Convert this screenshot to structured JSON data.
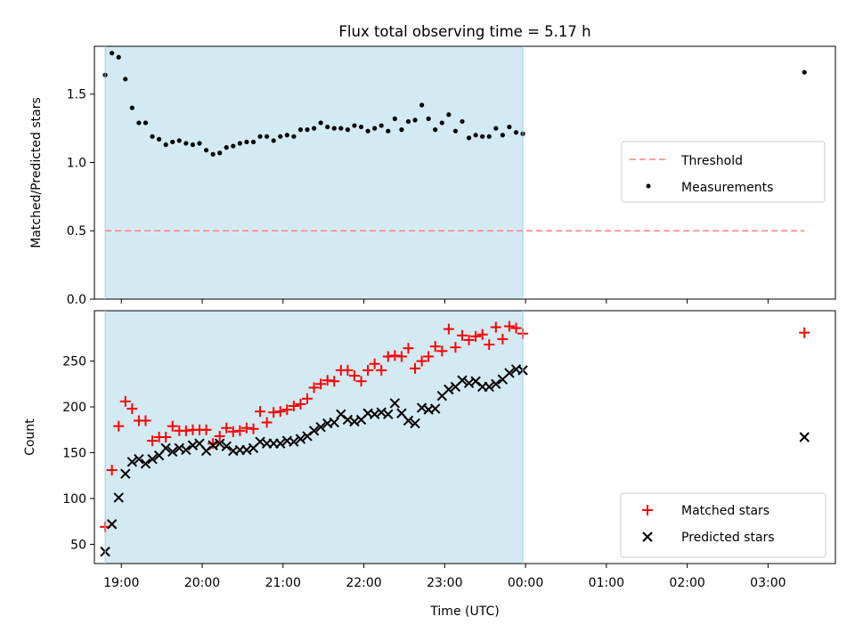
{
  "title": "Flux total observing time = 5.17 h",
  "xlabel": "Time (UTC)",
  "x_ticks": [
    "19:00",
    "20:00",
    "21:00",
    "22:00",
    "23:00",
    "00:00",
    "01:00",
    "02:00",
    "03:00"
  ],
  "colors": {
    "shade": "#add8e6",
    "threshold": "#ff8080",
    "measurements": "#000000",
    "matched": "#ff0000",
    "predicted": "#000000"
  },
  "chart_data": [
    {
      "type": "scatter",
      "ylabel": "Matched/Predicted stars",
      "ylim": [
        0,
        1.85
      ],
      "y_ticks": [
        "0.0",
        "0.5",
        "1.0",
        "1.5"
      ],
      "y_tick_values": [
        0,
        0.5,
        1.0,
        1.5
      ],
      "shaded_span": [
        "18:48",
        "23:58"
      ],
      "legend": {
        "placement": "center-right",
        "entries": [
          "Threshold",
          "Measurements"
        ]
      },
      "threshold": {
        "name": "Threshold",
        "value": 0.5,
        "x_range": [
          "18:48",
          "03:27"
        ]
      },
      "series": [
        {
          "name": "Measurements",
          "x": [
            "18:48",
            "18:53",
            "18:58",
            "19:03",
            "19:08",
            "19:13",
            "19:18",
            "19:23",
            "19:28",
            "19:33",
            "19:38",
            "19:43",
            "19:48",
            "19:53",
            "19:58",
            "20:03",
            "20:08",
            "20:13",
            "20:18",
            "20:23",
            "20:28",
            "20:33",
            "20:38",
            "20:43",
            "20:48",
            "20:53",
            "20:58",
            "21:03",
            "21:08",
            "21:13",
            "21:18",
            "21:23",
            "21:28",
            "21:33",
            "21:38",
            "21:43",
            "21:48",
            "21:53",
            "21:58",
            "22:03",
            "22:08",
            "22:13",
            "22:18",
            "22:23",
            "22:28",
            "22:33",
            "22:38",
            "22:43",
            "22:48",
            "22:53",
            "22:58",
            "23:03",
            "23:08",
            "23:13",
            "23:18",
            "23:23",
            "23:28",
            "23:33",
            "23:38",
            "23:43",
            "23:48",
            "23:53",
            "23:58",
            "03:27"
          ],
          "y": [
            1.64,
            1.8,
            1.77,
            1.61,
            1.4,
            1.29,
            1.29,
            1.19,
            1.17,
            1.13,
            1.15,
            1.16,
            1.14,
            1.13,
            1.14,
            1.09,
            1.06,
            1.07,
            1.11,
            1.12,
            1.14,
            1.15,
            1.15,
            1.19,
            1.19,
            1.16,
            1.19,
            1.2,
            1.19,
            1.24,
            1.24,
            1.25,
            1.29,
            1.26,
            1.25,
            1.25,
            1.24,
            1.27,
            1.26,
            1.23,
            1.25,
            1.27,
            1.23,
            1.32,
            1.24,
            1.3,
            1.31,
            1.42,
            1.32,
            1.24,
            1.29,
            1.35,
            1.23,
            1.3,
            1.18,
            1.2,
            1.19,
            1.19,
            1.25,
            1.2,
            1.26,
            1.22,
            1.21,
            1.66
          ]
        }
      ]
    },
    {
      "type": "scatter",
      "ylabel": "Count",
      "ylim": [
        29,
        305
      ],
      "y_ticks": [
        "50",
        "100",
        "150",
        "200",
        "250"
      ],
      "y_tick_values": [
        50,
        100,
        150,
        200,
        250
      ],
      "shaded_span": [
        "18:48",
        "23:58"
      ],
      "legend": {
        "placement": "lower-right",
        "entries": [
          "Matched stars",
          "Predicted stars"
        ]
      },
      "series": [
        {
          "name": "Matched stars",
          "marker": "plus",
          "x": [
            "18:48",
            "18:53",
            "18:58",
            "19:03",
            "19:08",
            "19:13",
            "19:18",
            "19:23",
            "19:28",
            "19:33",
            "19:38",
            "19:43",
            "19:48",
            "19:53",
            "19:58",
            "20:03",
            "20:08",
            "20:13",
            "20:18",
            "20:23",
            "20:28",
            "20:33",
            "20:38",
            "20:43",
            "20:48",
            "20:53",
            "20:58",
            "21:03",
            "21:08",
            "21:13",
            "21:18",
            "21:23",
            "21:28",
            "21:33",
            "21:38",
            "21:43",
            "21:48",
            "21:53",
            "21:58",
            "22:03",
            "22:08",
            "22:13",
            "22:18",
            "22:23",
            "22:28",
            "22:33",
            "22:38",
            "22:43",
            "22:48",
            "22:53",
            "22:58",
            "23:03",
            "23:08",
            "23:13",
            "23:18",
            "23:23",
            "23:28",
            "23:33",
            "23:38",
            "23:43",
            "23:48",
            "23:53",
            "23:58",
            "03:27"
          ],
          "y": [
            69,
            131,
            179,
            206,
            198,
            185,
            185,
            163,
            167,
            167,
            179,
            174,
            174,
            175,
            175,
            175,
            160,
            168,
            177,
            173,
            174,
            177,
            176,
            195,
            183,
            194,
            195,
            197,
            201,
            203,
            209,
            221,
            225,
            229,
            228,
            240,
            240,
            234,
            228,
            240,
            247,
            240,
            255,
            256,
            255,
            264,
            242,
            250,
            255,
            266,
            261,
            285,
            265,
            278,
            273,
            277,
            279,
            268,
            287,
            274,
            288,
            286,
            280,
            281
          ]
        },
        {
          "name": "Predicted stars",
          "marker": "x",
          "x": [
            "18:48",
            "18:53",
            "18:58",
            "19:03",
            "19:08",
            "19:13",
            "19:18",
            "19:23",
            "19:28",
            "19:33",
            "19:38",
            "19:43",
            "19:48",
            "19:53",
            "19:58",
            "20:03",
            "20:08",
            "20:13",
            "20:18",
            "20:23",
            "20:28",
            "20:33",
            "20:38",
            "20:43",
            "20:48",
            "20:53",
            "20:58",
            "21:03",
            "21:08",
            "21:13",
            "21:18",
            "21:23",
            "21:28",
            "21:33",
            "21:38",
            "21:43",
            "21:48",
            "21:53",
            "21:58",
            "22:03",
            "22:08",
            "22:13",
            "22:18",
            "22:23",
            "22:28",
            "22:33",
            "22:38",
            "22:43",
            "22:48",
            "22:53",
            "22:58",
            "23:03",
            "23:08",
            "23:13",
            "23:18",
            "23:23",
            "23:28",
            "23:33",
            "23:38",
            "23:43",
            "23:48",
            "23:53",
            "23:58",
            "03:27"
          ],
          "y": [
            42,
            72,
            101,
            127,
            140,
            143,
            138,
            143,
            147,
            155,
            151,
            155,
            153,
            158,
            160,
            152,
            158,
            160,
            157,
            152,
            153,
            153,
            155,
            162,
            160,
            160,
            160,
            163,
            162,
            165,
            168,
            174,
            178,
            182,
            183,
            192,
            186,
            184,
            186,
            193,
            192,
            194,
            192,
            204,
            193,
            185,
            182,
            199,
            197,
            198,
            212,
            219,
            222,
            229,
            226,
            228,
            222,
            222,
            225,
            230,
            237,
            241,
            240,
            167
          ]
        }
      ]
    }
  ]
}
